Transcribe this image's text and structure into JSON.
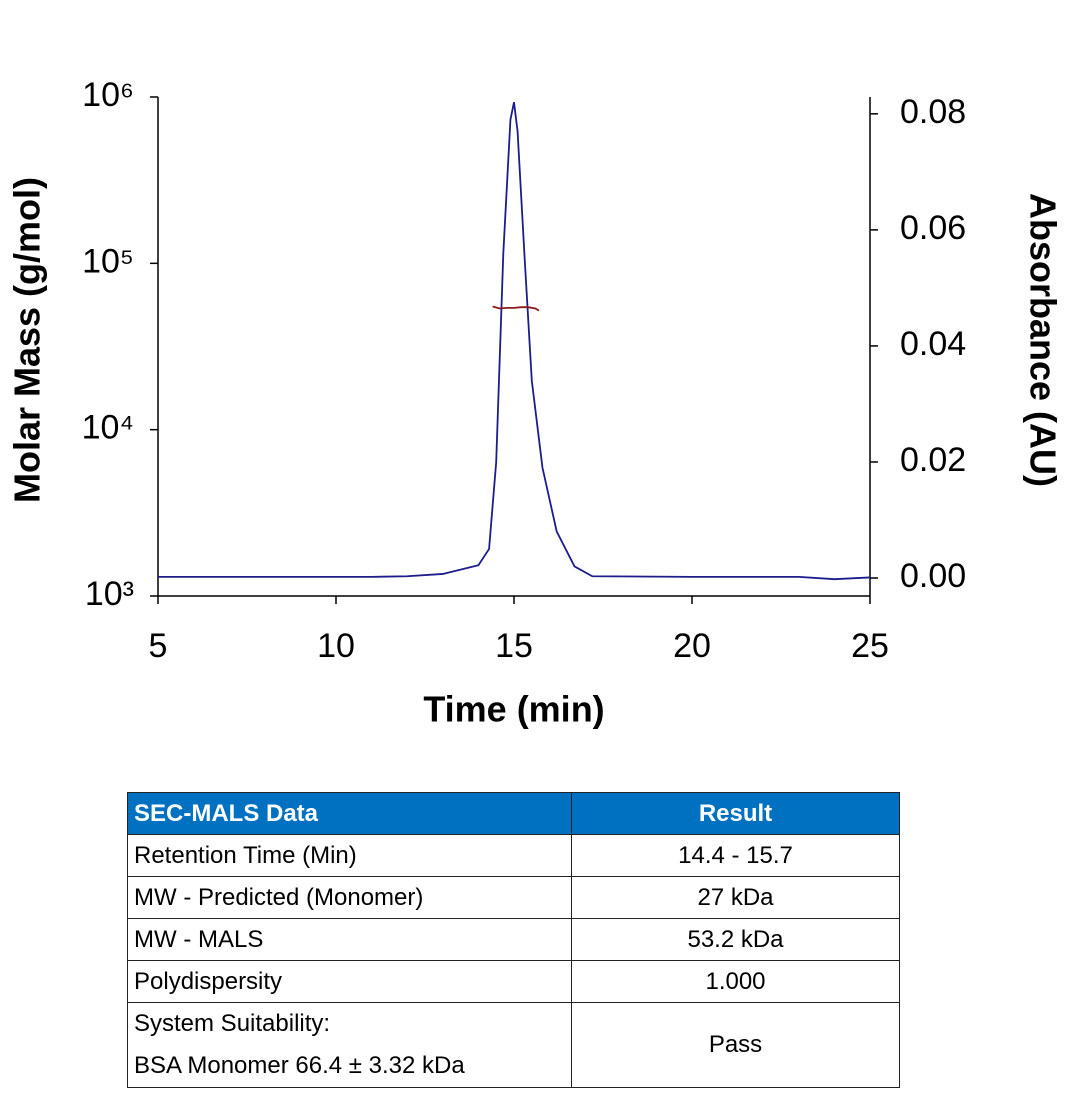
{
  "chart_data": {
    "type": "line",
    "xlabel": "Time (min)",
    "ylabel": "Molar Mass (g/mol)",
    "y2label": "Absorbance (AU)",
    "xlim": [
      5,
      25
    ],
    "xticks": [
      5,
      10,
      15,
      20,
      25
    ],
    "ylim": [
      1000,
      1000000
    ],
    "ylog": true,
    "yticks": [
      {
        "value": 1000,
        "label": "10³"
      },
      {
        "value": 10000,
        "label": "10⁴"
      },
      {
        "value": 100000,
        "label": "10⁵"
      },
      {
        "value": 1000000,
        "label": "10⁶"
      }
    ],
    "y2lim": [
      -0.0031,
      0.0829
    ],
    "y2ticks": [
      {
        "value": 0,
        "label": "0.00"
      },
      {
        "value": 0.02,
        "label": "0.02"
      },
      {
        "value": 0.04,
        "label": "0.04"
      },
      {
        "value": 0.06,
        "label": "0.06"
      },
      {
        "value": 0.08,
        "label": "0.08"
      }
    ],
    "series": [
      {
        "name": "Absorbance",
        "color": "#1c1c8c",
        "axis": "y2",
        "x": [
          5,
          8,
          11,
          12,
          13,
          14,
          14.3,
          14.5,
          14.7,
          14.9,
          15.0,
          15.1,
          15.3,
          15.5,
          15.8,
          16.2,
          16.7,
          17.2,
          20,
          23,
          24,
          25
        ],
        "values": [
          0.0002,
          0.0002,
          0.0002,
          0.0003,
          0.0007,
          0.0022,
          0.005,
          0.02,
          0.056,
          0.079,
          0.082,
          0.077,
          0.055,
          0.034,
          0.019,
          0.008,
          0.002,
          0.0003,
          0.0002,
          0.0002,
          -0.0002,
          0.0001
        ]
      },
      {
        "name": "Molar Mass",
        "color": "#8b1a1a",
        "axis": "y",
        "x": [
          14.4,
          14.6,
          14.8,
          15.0,
          15.2,
          15.4,
          15.6,
          15.7
        ],
        "values": [
          55000,
          53500,
          54000,
          54000,
          54500,
          54500,
          53500,
          52000
        ]
      }
    ]
  },
  "table": {
    "header": [
      "SEC-MALS Data",
      "Result"
    ],
    "rows": [
      {
        "label": [
          "Retention Time (Min)"
        ],
        "result": "14.4 - 15.7"
      },
      {
        "label": [
          "MW - Predicted (Monomer)"
        ],
        "result": "27 kDa"
      },
      {
        "label": [
          "MW - MALS"
        ],
        "result": "53.2 kDa"
      },
      {
        "label": [
          "Polydispersity"
        ],
        "result": "1.000"
      },
      {
        "label": [
          "System Suitability:",
          "BSA Monomer 66.4 ± 3.32 kDa"
        ],
        "result": "Pass"
      }
    ]
  }
}
